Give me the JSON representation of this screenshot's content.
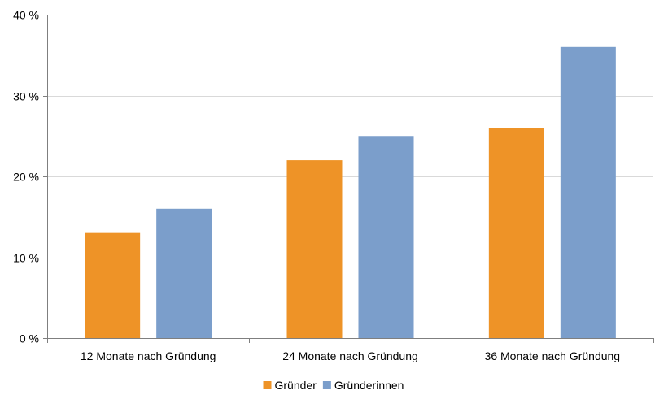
{
  "chart_data": {
    "type": "bar",
    "title": "",
    "xlabel": "",
    "ylabel": "",
    "categories": [
      "12 Monate nach Gründung",
      "24 Monate nach Gründung",
      "36 Monate nach Gründung"
    ],
    "series": [
      {
        "name": "Gründer",
        "color": "#ee9327",
        "values": [
          13,
          22,
          26
        ]
      },
      {
        "name": "Gründerinnen",
        "color": "#7b9ecb",
        "values": [
          16,
          25,
          36
        ]
      }
    ],
    "ylim": [
      0,
      40
    ],
    "yticks": [
      0,
      10,
      20,
      30,
      40
    ],
    "ytick_labels": [
      "0 %",
      "10 %",
      "20 %",
      "30 %",
      "40 %"
    ],
    "grid": true,
    "legend_position": "bottom"
  }
}
